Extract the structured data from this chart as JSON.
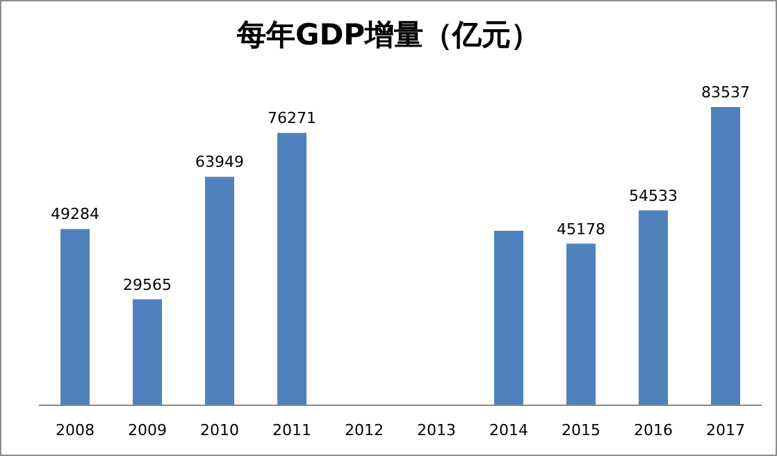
{
  "chart_data": {
    "type": "bar",
    "title": "每年GDP增量（亿元）",
    "categories": [
      "2008",
      "2009",
      "2010",
      "2011",
      "2012",
      "2013",
      "2014",
      "2015",
      "2016",
      "2017"
    ],
    "values": [
      49284,
      29565,
      63949,
      76271,
      null,
      null,
      48800,
      45178,
      54533,
      83537
    ],
    "value_labels": [
      "49284",
      "29565",
      "63949",
      "76271",
      null,
      null,
      null,
      "45178",
      "54533",
      "83537"
    ],
    "color": "#4f81bd"
  }
}
